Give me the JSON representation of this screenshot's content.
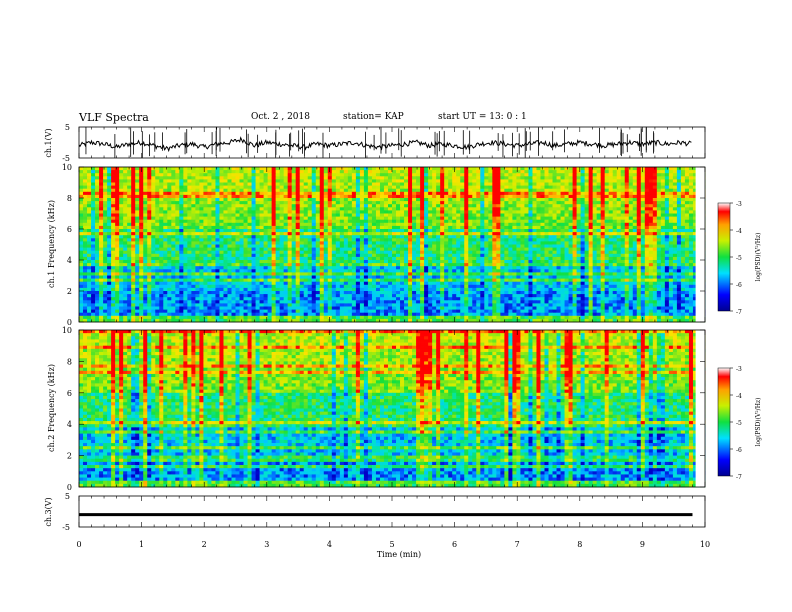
{
  "header": {
    "title": "VLF Spectra",
    "date": "Oct. 2 , 2018",
    "station": "station= KAP",
    "start_time": "start  UT =   13: 0  : 1"
  },
  "colorbar_label": "log(PSD)(V²/Hz)",
  "colors": {
    "spectrogram_base": "#1fe03c",
    "low": "#0000c8",
    "mid": "#00d8ff",
    "high": "#ffe000",
    "peak": "#ff0000"
  },
  "chart_data": [
    {
      "type": "line",
      "title": "",
      "ylabel": "ch.1(V)",
      "xlim": [
        0,
        10
      ],
      "ylim": [
        -5,
        5
      ],
      "yticks": [
        "5",
        "-5"
      ],
      "description_series": "waveform amplitude around -1 V with spikes",
      "series": [
        {
          "x": [
            0,
            0.2,
            0.4,
            0.6,
            0.8,
            1.0,
            1.2,
            1.4,
            1.6,
            1.8,
            2.0,
            2.2,
            2.4,
            2.6,
            2.8,
            3.0,
            3.2,
            3.4,
            3.6,
            3.8,
            4.0,
            4.2,
            4.4,
            4.6,
            4.8,
            5.0,
            5.2,
            5.4,
            5.6,
            5.8,
            6.0,
            6.2,
            6.4,
            6.6,
            6.8,
            7.0,
            7.2,
            7.4,
            7.6,
            7.8,
            8.0,
            8.2,
            8.4,
            8.6,
            8.8,
            9.0,
            9.2,
            9.4,
            9.6,
            9.8
          ],
          "y": [
            -1,
            0,
            -0.5,
            -1.5,
            -0.5,
            0,
            -1,
            -2,
            -1,
            -0.5,
            -1.5,
            -0.5,
            0,
            1,
            -1,
            0,
            -0.5,
            -1,
            -1.5,
            -0.5,
            -1,
            -0.5,
            0,
            -1,
            -1.5,
            -1,
            -0.5,
            0,
            -1,
            -0.5,
            -1,
            -1.5,
            -0.5,
            0,
            -0.5,
            -1,
            -0.5,
            0,
            -1,
            -0.5,
            0,
            -0.5,
            -1,
            -0.5,
            0,
            -0.5,
            0,
            -0.5,
            0,
            -0.5
          ]
        }
      ]
    },
    {
      "type": "heatmap",
      "title": "",
      "ylabel": "ch.1 Frequency (kHz)",
      "xlim": [
        0,
        10
      ],
      "ylim": [
        0,
        10
      ],
      "yticks": [
        "0",
        "2",
        "4",
        "6",
        "8",
        "10"
      ],
      "colorbar": {
        "range": [
          -7,
          -3
        ],
        "ticks": [
          "-3",
          "-4",
          "-5",
          "-6",
          "-7"
        ]
      }
    },
    {
      "type": "heatmap",
      "title": "",
      "ylabel": "ch.2 Frequency (kHz)",
      "xlim": [
        0,
        10
      ],
      "ylim": [
        0,
        10
      ],
      "yticks": [
        "0",
        "2",
        "4",
        "6",
        "8",
        "10"
      ],
      "colorbar": {
        "range": [
          -7,
          -3
        ],
        "ticks": [
          "-3",
          "-4",
          "-5",
          "-6",
          "-7"
        ]
      }
    },
    {
      "type": "line",
      "title": "",
      "ylabel": "ch.3(V)",
      "xlim": [
        0,
        10
      ],
      "ylim": [
        -5,
        5
      ],
      "yticks": [
        "5",
        "-5"
      ],
      "series": [
        {
          "x": [
            0,
            9.8
          ],
          "y": [
            -1,
            -1
          ]
        }
      ]
    }
  ],
  "xaxis": {
    "label": "Time  (min)",
    "ticks": [
      "0",
      "1",
      "2",
      "3",
      "4",
      "5",
      "6",
      "7",
      "8",
      "9",
      "10"
    ]
  }
}
